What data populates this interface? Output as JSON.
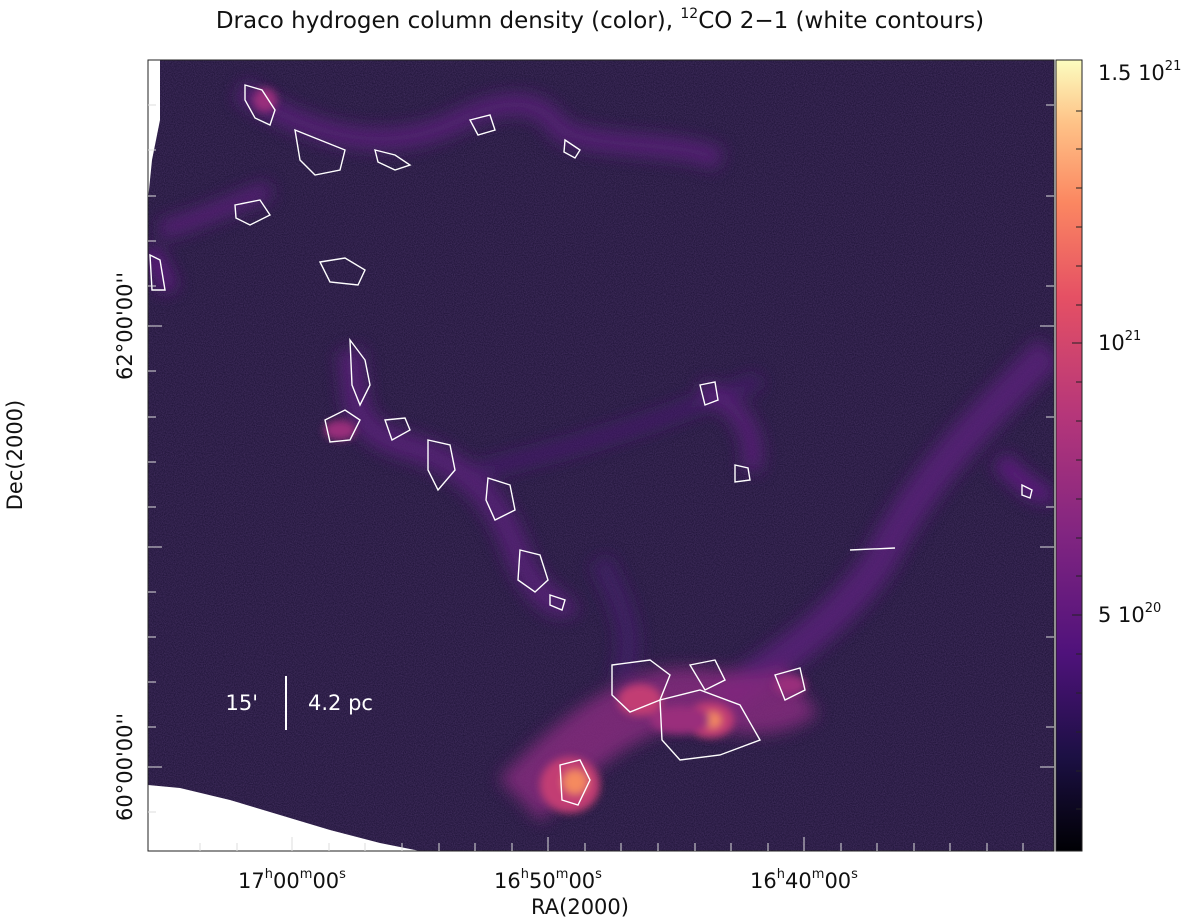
{
  "title": {
    "prefix": "Draco hydrogen column density (color), ",
    "sup": "12",
    "suffix": "CO 2−1 (white contours)"
  },
  "axes": {
    "xlabel": "RA(2000)",
    "ylabel": "Dec(2000)",
    "x_ticks": [
      {
        "h": "17",
        "m": "00",
        "s": "00"
      },
      {
        "h": "16",
        "m": "50",
        "s": "00"
      },
      {
        "h": "16",
        "m": "40",
        "s": "00"
      }
    ],
    "y_ticks": [
      "62°00'00''",
      "60°00'00''"
    ]
  },
  "colorbar": {
    "labels": [
      {
        "base": "1.5 10",
        "exp": "21",
        "value": 1.5e+21
      },
      {
        "base": "10",
        "exp": "21",
        "value": 1e+21
      },
      {
        "base": "5 10",
        "exp": "20",
        "value": 5e+20
      }
    ],
    "colors": [
      "#000004",
      "#1c1044",
      "#4f127b",
      "#812581",
      "#b5367a",
      "#e55064",
      "#fb8761",
      "#fec287",
      "#fcfdbf"
    ]
  },
  "scalebar": {
    "left_label": "15'",
    "right_label": "4.2 pc"
  },
  "image": {
    "background_color": "#1a1033",
    "contour_color": "#ffffff"
  }
}
